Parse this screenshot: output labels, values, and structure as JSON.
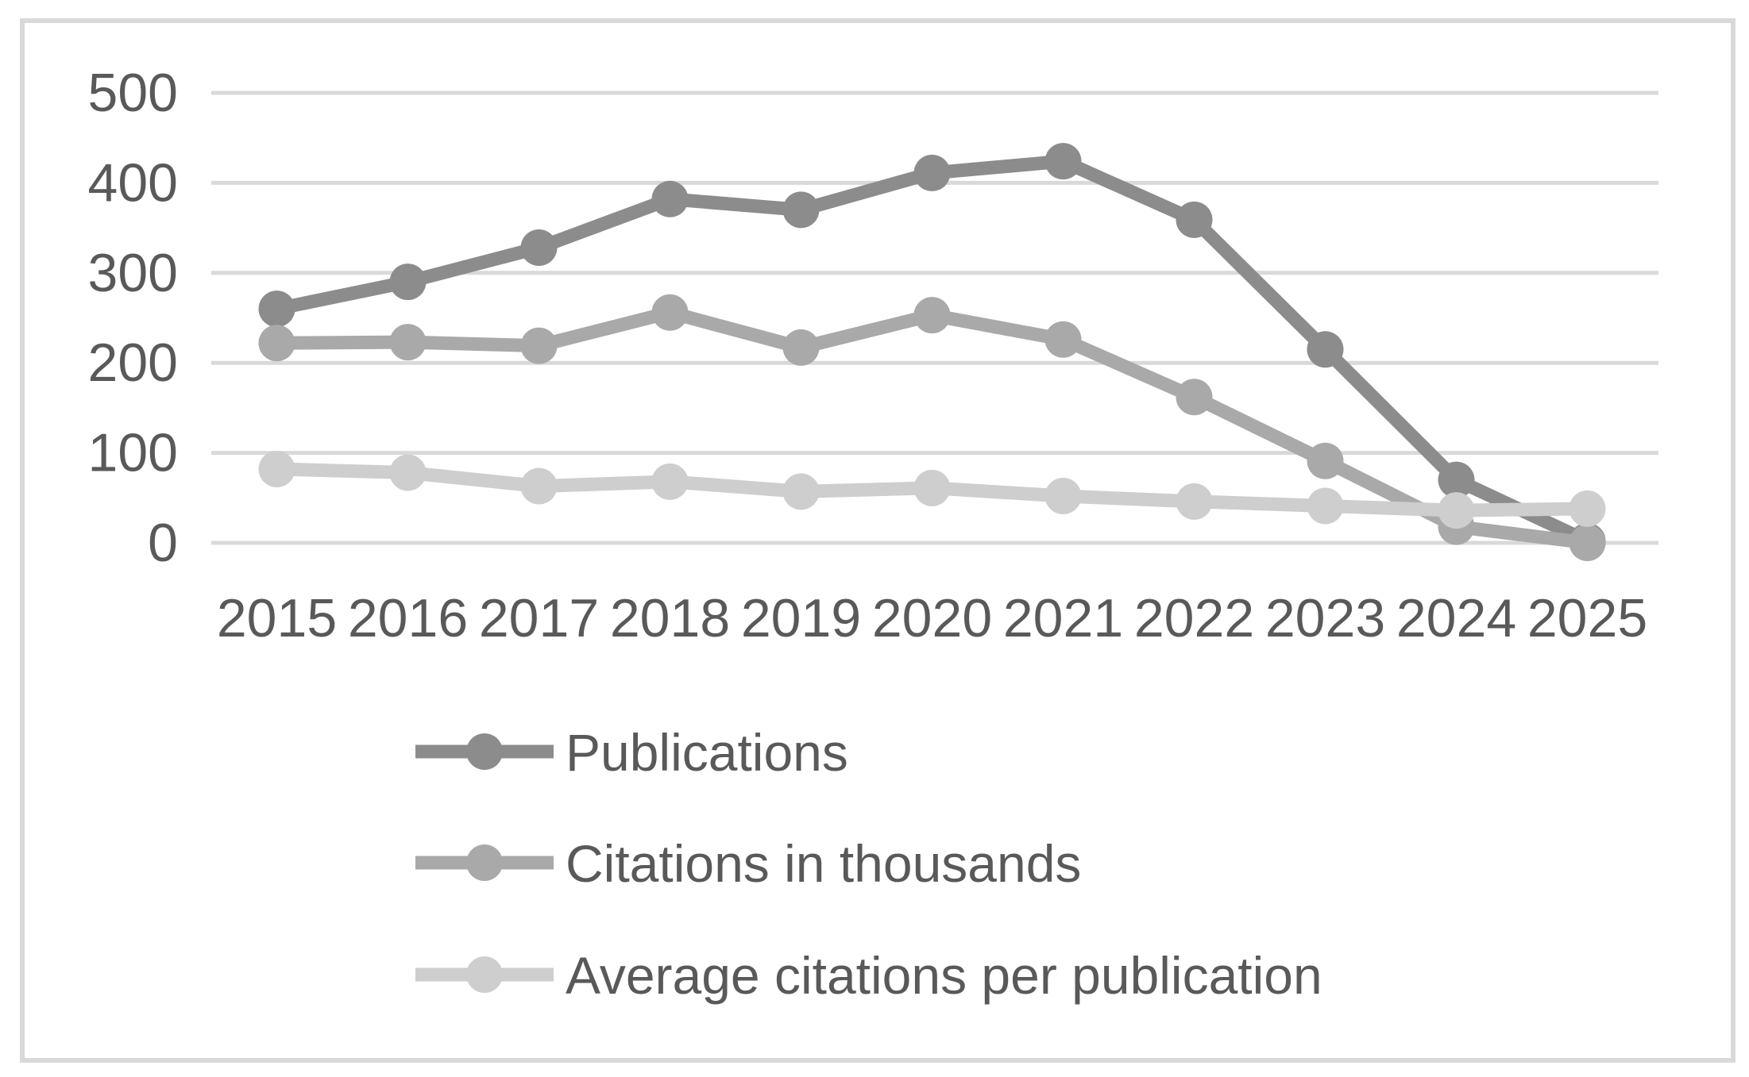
{
  "chart_data": {
    "type": "line",
    "title": "",
    "xlabel": "",
    "ylabel": "",
    "categories": [
      "2015",
      "2016",
      "2017",
      "2018",
      "2019",
      "2020",
      "2021",
      "2022",
      "2023",
      "2024",
      "2025"
    ],
    "series": [
      {
        "name": "Publications",
        "color": "#8c8c8c",
        "values": [
          260,
          290,
          328,
          382,
          370,
          411,
          424,
          359,
          215,
          70,
          2
        ]
      },
      {
        "name": "Citations in thousands",
        "color": "#a9a9a9",
        "values": [
          222,
          223,
          219,
          256,
          217,
          253,
          226,
          162,
          91,
          18,
          0
        ]
      },
      {
        "name": "Average citations per publication",
        "color": "#cecece",
        "values": [
          82,
          78,
          63,
          68,
          57,
          61,
          52,
          46,
          41,
          36,
          38
        ]
      }
    ],
    "ylim": [
      0,
      500
    ],
    "yticks": [
      0,
      100,
      200,
      300,
      400,
      500
    ],
    "grid": "horizontal-only",
    "gridline_color": "#d9d9d9",
    "axis_text_color": "#595959",
    "border_color": "#d9d9d9",
    "background_color": "#ffffff",
    "marker": "circle",
    "legend_position": "bottom-left"
  }
}
